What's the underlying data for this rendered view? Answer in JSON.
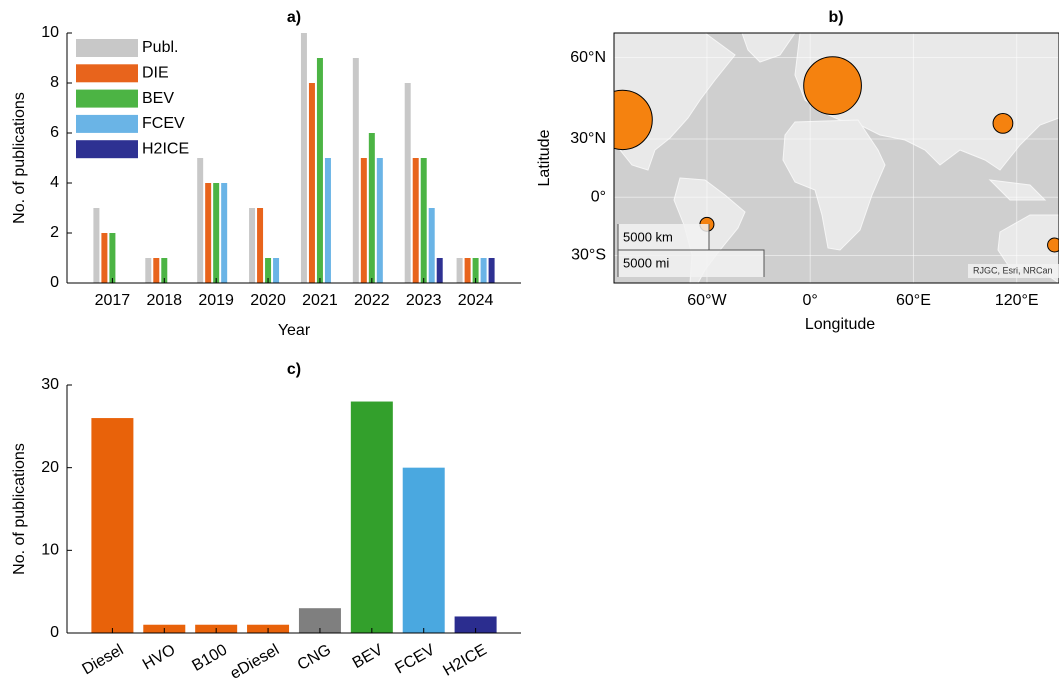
{
  "chart_data": [
    {
      "type": "bar",
      "title": "a)",
      "xlabel": "Year",
      "ylabel": "No. of publications",
      "categories": [
        "2017",
        "2018",
        "2019",
        "2020",
        "2021",
        "2022",
        "2023",
        "2024"
      ],
      "series": [
        {
          "name": "Publ.",
          "color": "#c8c8c8",
          "values": [
            3,
            1,
            5,
            3,
            10,
            9,
            8,
            1
          ]
        },
        {
          "name": "DIE",
          "color": "#e8641c",
          "values": [
            2,
            1,
            4,
            3,
            8,
            5,
            5,
            1
          ]
        },
        {
          "name": "BEV",
          "color": "#4cb444",
          "values": [
            2,
            1,
            4,
            1,
            9,
            6,
            5,
            1
          ]
        },
        {
          "name": "FCEV",
          "color": "#6ab4e6",
          "values": [
            0,
            0,
            4,
            1,
            5,
            5,
            3,
            1
          ]
        },
        {
          "name": "H2ICE",
          "color": "#2e3192",
          "values": [
            0,
            0,
            0,
            0,
            0,
            0,
            1,
            1
          ]
        }
      ],
      "ylim": [
        0,
        10
      ],
      "yticks": [
        0,
        2,
        4,
        6,
        8,
        10
      ],
      "legend": "upper-left"
    },
    {
      "type": "bubble-map",
      "title": "b)",
      "xlabel": "Longitude",
      "ylabel": "Latitude",
      "lon": [
        -109,
        13,
        112,
        -60,
        142
      ],
      "lat": [
        38.5,
        51.5,
        37,
        -14.5,
        -25
      ],
      "sizes": [
        18,
        17,
        2,
        1,
        1
      ],
      "color": "#f5820f",
      "projection": "mercator",
      "xlim": [
        -114,
        144
      ],
      "ylim": [
        -42,
        66
      ],
      "xticks": [
        {
          "value": -60,
          "label": "60°W"
        },
        {
          "value": 0,
          "label": "0°"
        },
        {
          "value": 60,
          "label": "60°E"
        },
        {
          "value": 120,
          "label": "120°E"
        }
      ],
      "yticks": [
        {
          "value": -30,
          "label": "30°S"
        },
        {
          "value": 0,
          "label": "0°"
        },
        {
          "value": 30,
          "label": "30°N"
        },
        {
          "value": 60,
          "label": "60°N"
        }
      ],
      "grid": true,
      "scalebar": [
        "5000 km",
        "5000 mi"
      ],
      "attribution": "RJGC, Esri, NRCan"
    },
    {
      "type": "bar",
      "title": "c)",
      "ylabel": "No. of publications",
      "categories": [
        "Diesel",
        "HVO",
        "B100",
        "eDiesel",
        "CNG",
        "BEV",
        "FCEV",
        "H2ICE"
      ],
      "values": [
        26,
        1,
        1,
        1,
        3,
        28,
        20,
        2
      ],
      "colors": [
        "#e8620a",
        "#e8620a",
        "#e8620a",
        "#e8620a",
        "#7f7f7f",
        "#33a02c",
        "#4aa8e0",
        "#2b2d8f"
      ],
      "ylim": [
        0,
        30
      ],
      "yticks": [
        0,
        10,
        20,
        30
      ]
    }
  ]
}
